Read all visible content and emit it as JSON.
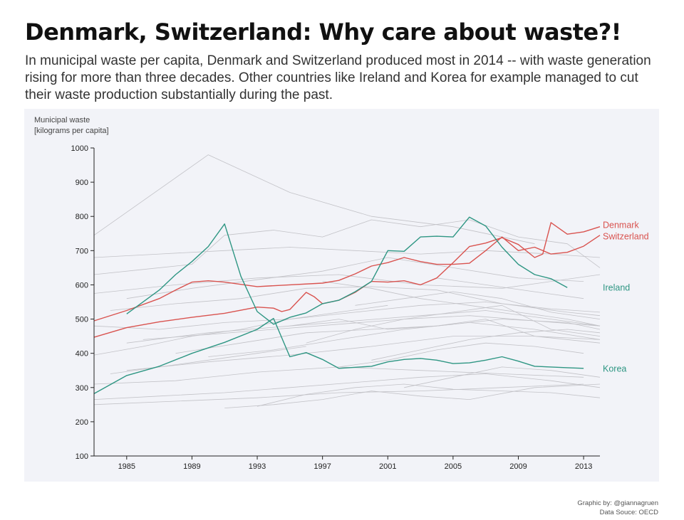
{
  "title": "Denmark, Switzerland: Why care about waste?!",
  "subtitle": "In municipal waste per capita, Denmark and Switzerland produced most in 2014 --  with waste generation rising for more than three decades. Other countries like Ireland and Korea for example managed to cut their waste production substantially during the past.",
  "credits": {
    "graphic": "Graphic by: @giannagruen",
    "source": "Data Souce: OECD"
  },
  "colors": {
    "denmark": "#d9534f",
    "switzerland": "#d9534f",
    "ireland": "#2e9683",
    "korea": "#2e9683",
    "background_series": "#c2c2c7",
    "panel": "#f2f3f8"
  },
  "chart_data": {
    "type": "line",
    "ylabel_line1": "Municipal waste",
    "ylabel_line2": "[kilograms per capita]",
    "xlim": [
      1983,
      2014
    ],
    "ylim": [
      100,
      1000
    ],
    "x_ticks": [
      1985,
      1989,
      1993,
      1997,
      2001,
      2005,
      2009,
      2013
    ],
    "y_ticks": [
      100,
      200,
      300,
      400,
      500,
      600,
      700,
      800,
      900,
      1000
    ],
    "grid": false,
    "highlight_series": [
      {
        "name": "Denmark",
        "color": "#d9534f",
        "x": [
          1983,
          1985,
          1987,
          1988,
          1989,
          1990,
          1991,
          1993,
          1995,
          1997,
          1998,
          1999,
          2000,
          2001,
          2002,
          2003,
          2004,
          2005,
          2006,
          2007,
          2008,
          2009,
          2010,
          2011,
          2012,
          2013,
          2014
        ],
        "y": [
          495,
          525,
          560,
          585,
          608,
          612,
          608,
          595,
          600,
          605,
          613,
          632,
          655,
          665,
          680,
          668,
          660,
          660,
          663,
          700,
          740,
          700,
          710,
          690,
          695,
          713,
          745
        ]
      },
      {
        "name": "Switzerland",
        "color": "#d9534f",
        "x": [
          1983,
          1985,
          1987,
          1989,
          1991,
          1993,
          1994,
          1994.5,
          1995,
          1996,
          1996.5,
          1997,
          1998,
          1999,
          2000,
          2001,
          2002,
          2003,
          2004,
          2005,
          2006,
          2007,
          2008,
          2009,
          2010,
          2010.5,
          2011,
          2012,
          2013,
          2014
        ],
        "y": [
          447,
          475,
          492,
          505,
          517,
          535,
          532,
          522,
          528,
          578,
          565,
          545,
          555,
          578,
          610,
          608,
          612,
          600,
          620,
          665,
          712,
          722,
          738,
          718,
          680,
          690,
          782,
          748,
          755,
          770
        ]
      },
      {
        "name": "Ireland",
        "color": "#2e9683",
        "x": [
          1985,
          1987,
          1988,
          1989,
          1990,
          1991,
          1992,
          1993,
          1994,
          1995,
          1996,
          1997,
          1998,
          1999,
          2000,
          2001,
          2002,
          2003,
          2004,
          2005,
          2006,
          2007,
          2008,
          2009,
          2010,
          2011,
          2012
        ],
        "y": [
          515,
          585,
          630,
          668,
          712,
          778,
          625,
          522,
          485,
          505,
          518,
          545,
          555,
          580,
          610,
          700,
          698,
          740,
          742,
          740,
          798,
          772,
          710,
          660,
          630,
          618,
          592
        ]
      },
      {
        "name": "Korea",
        "color": "#2e9683",
        "x": [
          1983,
          1985,
          1987,
          1989,
          1991,
          1993,
          1994,
          1995,
          1996,
          1997,
          1998,
          2000,
          2001,
          2002,
          2003,
          2004,
          2005,
          2006,
          2007,
          2008,
          2009,
          2010,
          2011,
          2012,
          2013
        ],
        "y": [
          282,
          335,
          362,
          400,
          432,
          470,
          502,
          390,
          402,
          382,
          356,
          362,
          375,
          382,
          385,
          380,
          370,
          372,
          380,
          390,
          377,
          362,
          360,
          358,
          356
        ]
      }
    ],
    "background_series": [
      {
        "x": [
          1983,
          1990,
          1995,
          2000,
          2005,
          2010
        ],
        "y": [
          745,
          980,
          870,
          800,
          770,
          720
        ]
      },
      {
        "x": [
          1983,
          1986,
          1989,
          1991,
          1994,
          1997,
          2000,
          2003,
          2006,
          2009,
          2012,
          2014
        ],
        "y": [
          630,
          645,
          660,
          745,
          760,
          740,
          790,
          770,
          790,
          740,
          720,
          650
        ]
      },
      {
        "x": [
          1983,
          1987,
          1991,
          1995,
          1999,
          2003,
          2007,
          2011,
          2014
        ],
        "y": [
          680,
          690,
          700,
          710,
          700,
          690,
          700,
          690,
          680
        ]
      },
      {
        "x": [
          1985,
          1989,
          1993,
          1997,
          2001,
          2005,
          2009,
          2013
        ],
        "y": [
          560,
          590,
          615,
          640,
          680,
          650,
          620,
          610
        ]
      },
      {
        "x": [
          1983,
          1988,
          1993,
          1998,
          2003,
          2008,
          2014
        ],
        "y": [
          575,
          600,
          620,
          630,
          600,
          590,
          630
        ]
      },
      {
        "x": [
          1984,
          1988,
          1992,
          1996,
          2000,
          2004,
          2008,
          2012,
          2014
        ],
        "y": [
          525,
          545,
          560,
          590,
          595,
          585,
          545,
          520,
          510
        ]
      },
      {
        "x": [
          1983,
          1987,
          1991,
          1995,
          1999,
          2003,
          2007,
          2011,
          2014
        ],
        "y": [
          480,
          470,
          490,
          500,
          520,
          540,
          550,
          530,
          520
        ]
      },
      {
        "x": [
          1985,
          1990,
          1995,
          1999,
          2003,
          2007,
          2011,
          2014
        ],
        "y": [
          430,
          460,
          480,
          495,
          510,
          525,
          500,
          480
        ]
      },
      {
        "x": [
          1988,
          1992,
          1996,
          2000,
          2004,
          2008,
          2012,
          2014
        ],
        "y": [
          400,
          430,
          460,
          470,
          480,
          500,
          490,
          470
        ]
      },
      {
        "x": [
          1990,
          1994,
          1998,
          2002,
          2006,
          2010,
          2014
        ],
        "y": [
          390,
          410,
          440,
          470,
          490,
          470,
          440
        ]
      },
      {
        "x": [
          1985,
          1990,
          1995,
          2000,
          2005,
          2010,
          2014
        ],
        "y": [
          350,
          375,
          395,
          420,
          450,
          450,
          430
        ]
      },
      {
        "x": [
          1983,
          1988,
          1993,
          1998,
          2003,
          2008,
          2013
        ],
        "y": [
          310,
          320,
          345,
          360,
          350,
          340,
          330
        ]
      },
      {
        "x": [
          1983,
          1987,
          1991,
          1995,
          1999,
          2003,
          2007,
          2011,
          2014
        ],
        "y": [
          265,
          275,
          285,
          300,
          315,
          330,
          340,
          320,
          300
        ]
      },
      {
        "x": [
          1983,
          1988,
          1993,
          1998,
          2003,
          2008,
          2013
        ],
        "y": [
          250,
          260,
          270,
          285,
          290,
          300,
          310
        ]
      },
      {
        "x": [
          1991,
          1994,
          1997,
          2000,
          2003,
          2006,
          2010,
          2014
        ],
        "y": [
          240,
          250,
          265,
          290,
          275,
          265,
          300,
          310
        ]
      },
      {
        "x": [
          1993,
          1996,
          1999,
          2002,
          2005,
          2008,
          2011,
          2014
        ],
        "y": [
          245,
          280,
          300,
          310,
          295,
          290,
          285,
          270
        ]
      },
      {
        "x": [
          1995,
          1998,
          2001,
          2004,
          2007,
          2010,
          2014
        ],
        "y": [
          480,
          500,
          470,
          480,
          500,
          450,
          440
        ]
      },
      {
        "x": [
          1996,
          1999,
          2002,
          2005,
          2008,
          2011,
          2014
        ],
        "y": [
          430,
          470,
          500,
          520,
          540,
          470,
          450
        ]
      },
      {
        "x": [
          1997,
          2000,
          2003,
          2006,
          2009,
          2012,
          2014
        ],
        "y": [
          610,
          590,
          560,
          540,
          520,
          500,
          480
        ]
      },
      {
        "x": [
          1999,
          2002,
          2005,
          2008,
          2011,
          2014
        ],
        "y": [
          540,
          560,
          580,
          560,
          520,
          500
        ]
      },
      {
        "x": [
          2000,
          2003,
          2006,
          2009,
          2012,
          2014
        ],
        "y": [
          380,
          410,
          440,
          460,
          470,
          460
        ]
      },
      {
        "x": [
          1998,
          2001,
          2004,
          2007,
          2010,
          2013
        ],
        "y": [
          360,
          380,
          410,
          430,
          420,
          400
        ]
      },
      {
        "x": [
          1984,
          1987,
          1990,
          1993,
          1996
        ],
        "y": [
          340,
          360,
          380,
          400,
          420
        ]
      },
      {
        "x": [
          2002,
          2005,
          2008,
          2011,
          2014
        ],
        "y": [
          300,
          330,
          360,
          350,
          330
        ]
      },
      {
        "x": [
          1983,
          1986,
          1989,
          1992,
          1995,
          1998,
          2001
        ],
        "y": [
          395,
          420,
          450,
          470,
          500,
          520,
          540
        ]
      },
      {
        "x": [
          2004,
          2007,
          2010,
          2013
        ],
        "y": [
          620,
          600,
          580,
          560
        ]
      },
      {
        "x": [
          1986,
          1990,
          1994,
          1998,
          2002,
          2006,
          2010,
          2014
        ],
        "y": [
          440,
          455,
          470,
          485,
          500,
          510,
          495,
          480
        ]
      }
    ],
    "annotations": [
      {
        "text": "Denmark",
        "series": "Denmark"
      },
      {
        "text": "Switzerland",
        "series": "Switzerland"
      },
      {
        "text": "Ireland",
        "series": "Ireland"
      },
      {
        "text": "Korea",
        "series": "Korea"
      }
    ]
  }
}
